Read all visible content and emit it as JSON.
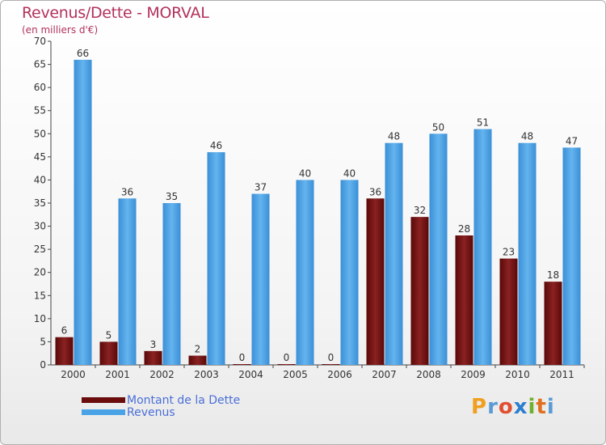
{
  "chart_data": {
    "type": "bar",
    "title": "Revenus/Dette - MORVAL",
    "subtitle": "(en milliers d'€)",
    "categories": [
      "2000",
      "2001",
      "2002",
      "2003",
      "2004",
      "2005",
      "2006",
      "2007",
      "2008",
      "2009",
      "2010",
      "2011"
    ],
    "series": [
      {
        "name": "Montant de la Dette",
        "color": "#7a1010",
        "values": [
          6,
          5,
          3,
          2,
          0,
          0,
          0,
          36,
          32,
          28,
          23,
          18
        ]
      },
      {
        "name": "Revenus",
        "color": "#4aa3e6",
        "values": [
          66,
          36,
          35,
          46,
          37,
          40,
          40,
          48,
          50,
          51,
          48,
          47
        ]
      }
    ],
    "ylim": [
      0,
      70
    ],
    "yticks": [
      0,
      5,
      10,
      15,
      20,
      25,
      30,
      35,
      40,
      45,
      50,
      55,
      60,
      65,
      70
    ],
    "grid": false,
    "legend_position": "bottom-left"
  },
  "logo": {
    "text": "Proxiti",
    "letters": [
      "P",
      "r",
      "o",
      "x",
      "i",
      "t",
      "i"
    ],
    "colors": [
      "#f0a020",
      "#5a9bd5",
      "#e05030",
      "#2a7fd0",
      "#70b030",
      "#e07020",
      "#5a9bd5"
    ]
  }
}
